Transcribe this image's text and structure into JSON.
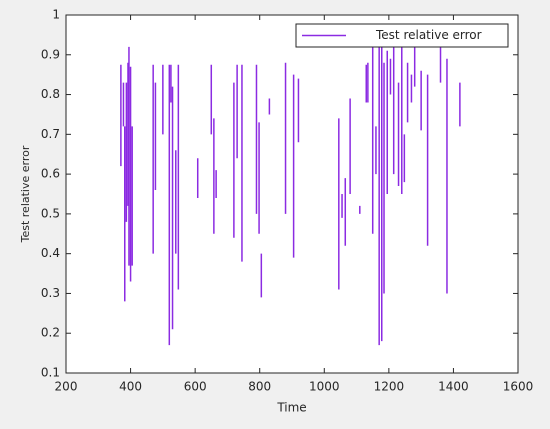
{
  "chart_data": {
    "type": "line",
    "xlabel": "Time",
    "ylabel": "Test relative  error",
    "xlim": [
      200,
      1600
    ],
    "xticks": [
      200,
      400,
      600,
      800,
      1000,
      1200,
      1400,
      1600
    ],
    "ylim": [
      0.1,
      1
    ],
    "yticks": [
      0.1,
      0.2,
      0.3,
      0.4,
      0.5,
      0.6,
      0.7,
      0.8,
      0.9,
      1
    ],
    "grid": false,
    "legend": "top-right",
    "x": [
      370,
      370,
      370,
      378,
      378,
      378,
      382,
      382,
      382,
      387,
      387,
      387,
      392,
      392,
      392,
      395,
      395,
      395,
      400,
      400,
      400,
      405,
      405,
      405,
      470,
      470,
      470,
      477,
      477,
      477,
      500,
      500,
      500,
      520,
      520,
      520,
      525,
      525,
      525,
      530,
      530,
      530,
      540,
      540,
      540,
      548,
      548,
      548,
      608,
      608,
      608,
      650,
      650,
      650,
      658,
      658,
      658,
      665,
      665,
      665,
      720,
      720,
      720,
      730,
      730,
      730,
      745,
      745,
      745,
      790,
      790,
      790,
      798,
      798,
      798,
      805,
      805,
      805,
      830,
      830,
      830,
      880,
      880,
      880,
      905,
      905,
      905,
      920,
      920,
      920,
      1045,
      1045,
      1045,
      1055,
      1055,
      1055,
      1065,
      1065,
      1065,
      1080,
      1080,
      1080,
      1110,
      1110,
      1110,
      1130,
      1130,
      1130,
      1135,
      1135,
      1135,
      1150,
      1150,
      1150,
      1160,
      1160,
      1160,
      1170,
      1170,
      1170,
      1178,
      1178,
      1178,
      1185,
      1185,
      1185,
      1195,
      1195,
      1195,
      1205,
      1205,
      1205,
      1215,
      1215,
      1215,
      1230,
      1230,
      1230,
      1240,
      1240,
      1240,
      1248,
      1248,
      1248,
      1258,
      1258,
      1258,
      1270,
      1270,
      1270,
      1280,
      1280,
      1280,
      1300,
      1300,
      1300,
      1320,
      1320,
      1320,
      1360,
      1360,
      1360,
      1380,
      1380,
      1380,
      1420,
      1420
    ],
    "series": [
      {
        "name": "Test relative  error",
        "color": "#8b2be2",
        "values": [
          0.875,
          0.62,
          null,
          0.83,
          0.72,
          null,
          0.72,
          0.28,
          null,
          0.83,
          0.48,
          null,
          0.88,
          0.52,
          null,
          0.92,
          0.37,
          null,
          0.87,
          0.33,
          null,
          0.72,
          0.37,
          null,
          0.875,
          0.4,
          null,
          0.83,
          0.56,
          null,
          0.875,
          0.7,
          null,
          0.875,
          0.17,
          null,
          0.875,
          0.78,
          null,
          0.82,
          0.21,
          null,
          0.66,
          0.4,
          null,
          0.875,
          0.31,
          null,
          0.64,
          0.54,
          null,
          0.875,
          0.7,
          null,
          0.74,
          0.45,
          null,
          0.61,
          0.54,
          null,
          0.83,
          0.44,
          null,
          0.875,
          0.64,
          null,
          0.875,
          0.38,
          null,
          0.875,
          0.5,
          null,
          0.73,
          0.45,
          null,
          0.4,
          0.29,
          null,
          0.79,
          0.75,
          null,
          0.88,
          0.5,
          null,
          0.85,
          0.39,
          null,
          0.84,
          0.68,
          null,
          0.74,
          0.31,
          null,
          0.55,
          0.49,
          null,
          0.59,
          0.42,
          null,
          0.79,
          0.55,
          null,
          0.52,
          0.5,
          null,
          0.875,
          0.78,
          null,
          0.88,
          0.78,
          null,
          0.93,
          0.45,
          null,
          0.72,
          0.6,
          null,
          0.92,
          0.17,
          null,
          0.93,
          0.18,
          null,
          0.88,
          0.3,
          null,
          0.91,
          0.55,
          null,
          0.89,
          0.8,
          null,
          0.93,
          0.6,
          null,
          0.83,
          0.57,
          null,
          0.93,
          0.55,
          null,
          0.7,
          0.58,
          null,
          0.88,
          0.73,
          null,
          0.85,
          0.78,
          null,
          0.92,
          0.82,
          null,
          0.86,
          0.71,
          null,
          0.85,
          0.42,
          null,
          0.92,
          0.83,
          null,
          0.89,
          0.3,
          null,
          0.83,
          0.72
        ]
      }
    ]
  }
}
